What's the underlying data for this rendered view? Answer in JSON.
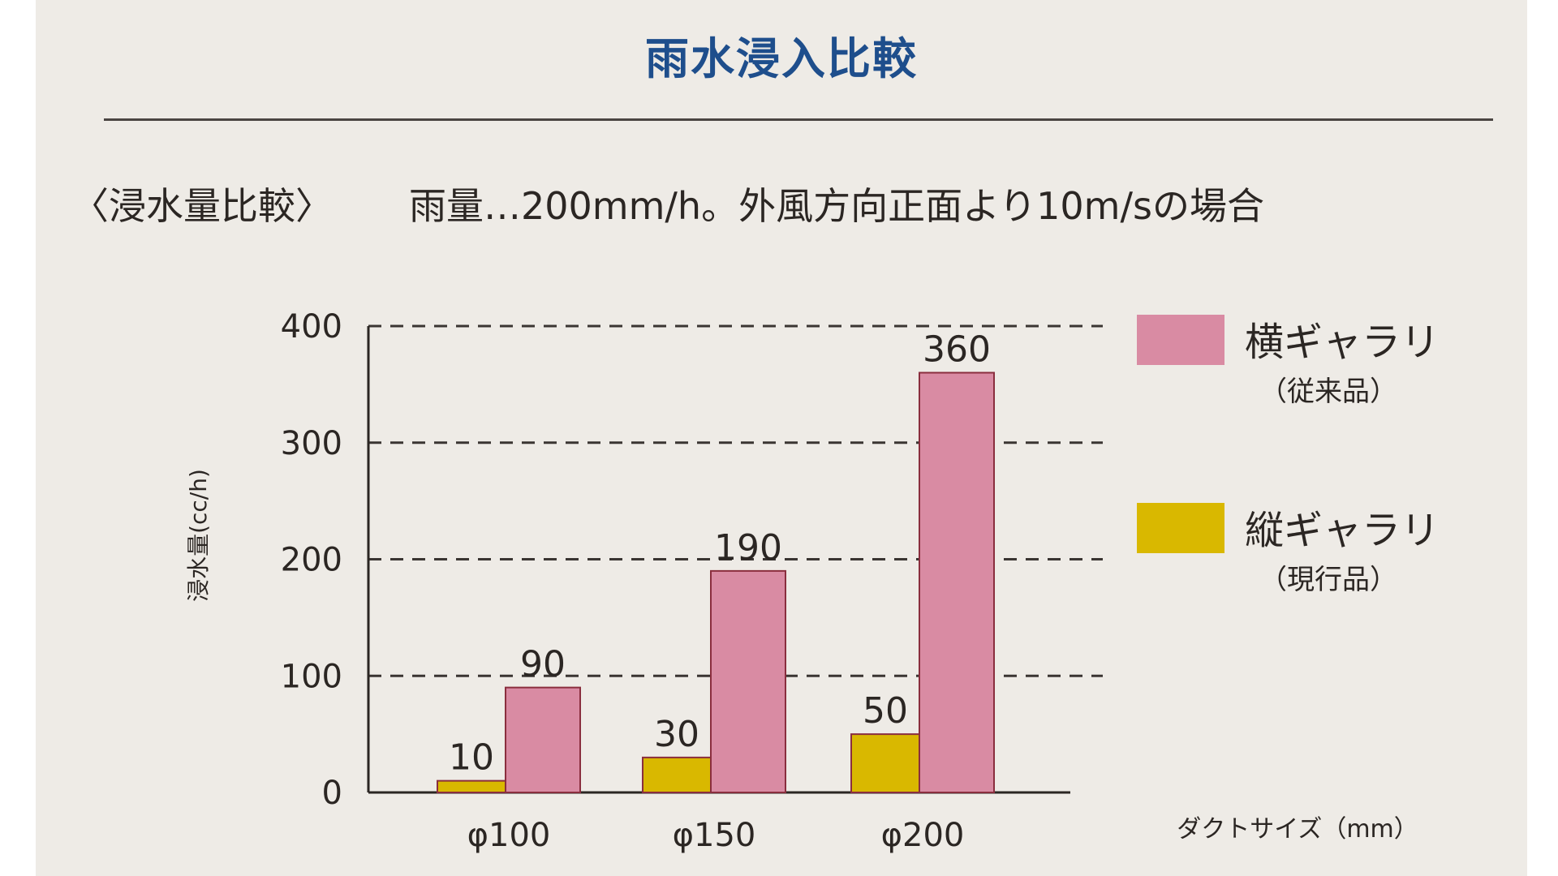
{
  "title": "雨水浸入比較",
  "subtitle_left": "〈浸水量比較〉",
  "subtitle_right": "雨量…200mm/h。外風方向正面より10m/sの場合",
  "colors": {
    "background": "#eeebe6",
    "title": "#1e4e8c",
    "pink": "#d98ba3",
    "yellow": "#d9b800",
    "bar_stroke": "#8a2e3e",
    "axis": "#2b2623"
  },
  "chart_data": {
    "type": "bar",
    "categories": [
      "φ100",
      "φ150",
      "φ200"
    ],
    "series": [
      {
        "name": "縦ギャラリ",
        "note": "（現行品）",
        "color": "#d9b800",
        "values": [
          10,
          30,
          50
        ]
      },
      {
        "name": "横ギャラリ",
        "note": "（従来品）",
        "color": "#d98ba3",
        "values": [
          90,
          190,
          360
        ]
      }
    ],
    "ylim": [
      0,
      400
    ],
    "yticks": [
      0,
      100,
      200,
      300,
      400
    ],
    "ylabel": "浸水量(cc/h)",
    "xlabel": "ダクトサイズ（mm）",
    "grid": "dashed-horizontal",
    "legend": "right"
  }
}
